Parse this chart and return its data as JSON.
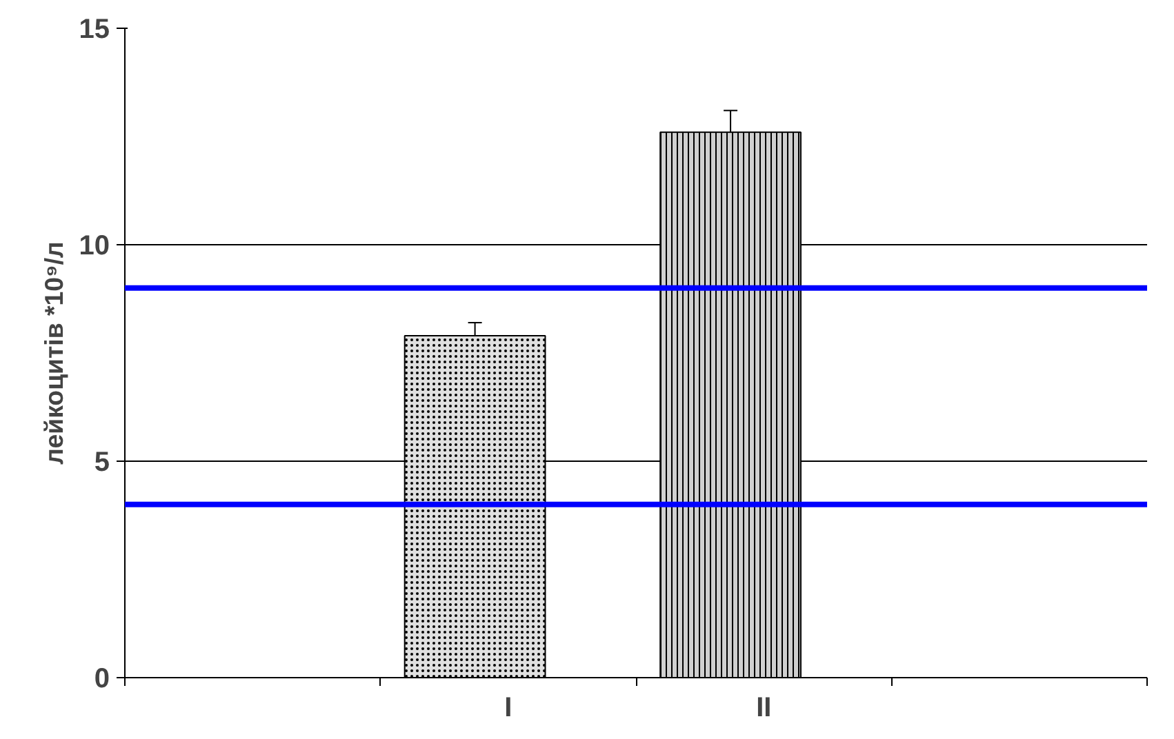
{
  "chart_data": {
    "type": "bar",
    "ylabel": "лейкоцитів *10⁹/л",
    "categories": [
      null,
      "I",
      "II",
      null
    ],
    "values": [
      null,
      7.9,
      12.6,
      null
    ],
    "errors": [
      null,
      0.3,
      0.5,
      null
    ],
    "colors": [
      "#e0e0e0",
      "#e0e0e0",
      "#d0d0d0",
      "#e0e0e0"
    ],
    "ylim": [
      0,
      15
    ],
    "yticks": [
      0,
      5,
      10,
      15
    ],
    "grid": "y",
    "ref_lines": [
      {
        "axis": "y",
        "value": 9.0,
        "color": "#0000ff"
      },
      {
        "axis": "y",
        "value": 4.0,
        "color": "#0000ff"
      }
    ]
  }
}
